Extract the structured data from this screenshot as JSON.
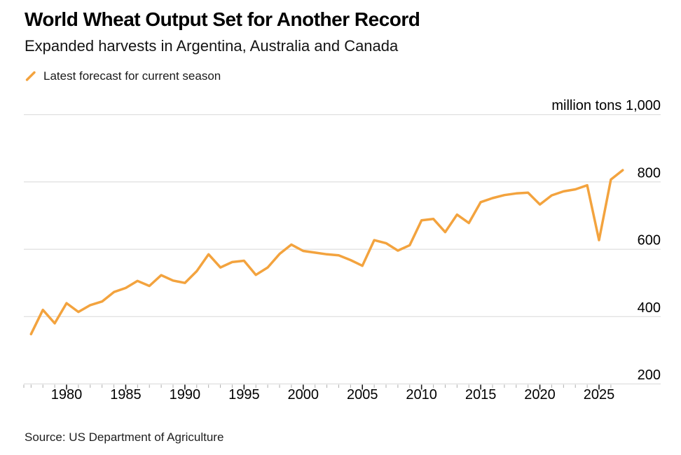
{
  "header": {
    "title": "World Wheat Output Set for Another Record",
    "subtitle": "Expanded harvests in Argentina, Australia and Canada"
  },
  "legend": {
    "label": "Latest forecast for current season"
  },
  "source": "Source: US Department of Agriculture",
  "colors": {
    "accent_line": "#F3A33E",
    "gridline": "#D8D8D8",
    "minor_tick": "#ADADAD",
    "major_tick": "#1a1a1a",
    "text": "#000000"
  },
  "chart_data": {
    "type": "line",
    "title": "World Wheat Output Set for Another Record",
    "subtitle": "Expanded harvests in Argentina, Australia and Canada",
    "series_name": "World wheat output",
    "unit_label": "million tons",
    "legend": [
      "Latest forecast for current season"
    ],
    "legend_position": "top-left",
    "grid": "horizontal",
    "xlim": [
      1977,
      2027
    ],
    "ylim": [
      200,
      1000
    ],
    "yticks": [
      200,
      400,
      600,
      800,
      1000
    ],
    "ytick_labels": [
      "200",
      "400",
      "600",
      "800",
      "1,000"
    ],
    "xticks": [
      1980,
      1985,
      1990,
      1995,
      2000,
      2005,
      2010,
      2015,
      2020,
      2025
    ],
    "xtick_labels": [
      "1980",
      "1985",
      "1990",
      "1995",
      "2000",
      "2005",
      "2010",
      "2015",
      "2020",
      "2025"
    ],
    "x": [
      1977,
      1978,
      1979,
      1980,
      1981,
      1982,
      1983,
      1984,
      1985,
      1986,
      1987,
      1988,
      1989,
      1990,
      1991,
      1992,
      1993,
      1994,
      1995,
      1996,
      1997,
      1998,
      1999,
      2000,
      2001,
      2002,
      2003,
      2004,
      2005,
      2006,
      2007,
      2008,
      2009,
      2010,
      2011,
      2012,
      2013,
      2014,
      2015,
      2016,
      2017,
      2018,
      2019,
      2020,
      2021,
      2022,
      2023,
      2024,
      2025,
      2026,
      2027
    ],
    "values": [
      348,
      420,
      380,
      440,
      414,
      434,
      445,
      473,
      485,
      506,
      491,
      523,
      507,
      500,
      535,
      585,
      546,
      562,
      566,
      524,
      546,
      586,
      614,
      595,
      590,
      585,
      582,
      568,
      551,
      627,
      618,
      596,
      612,
      686,
      690,
      651,
      703,
      678,
      740,
      752,
      761,
      766,
      768,
      733,
      760,
      772,
      778,
      790,
      627,
      807,
      835
    ]
  }
}
